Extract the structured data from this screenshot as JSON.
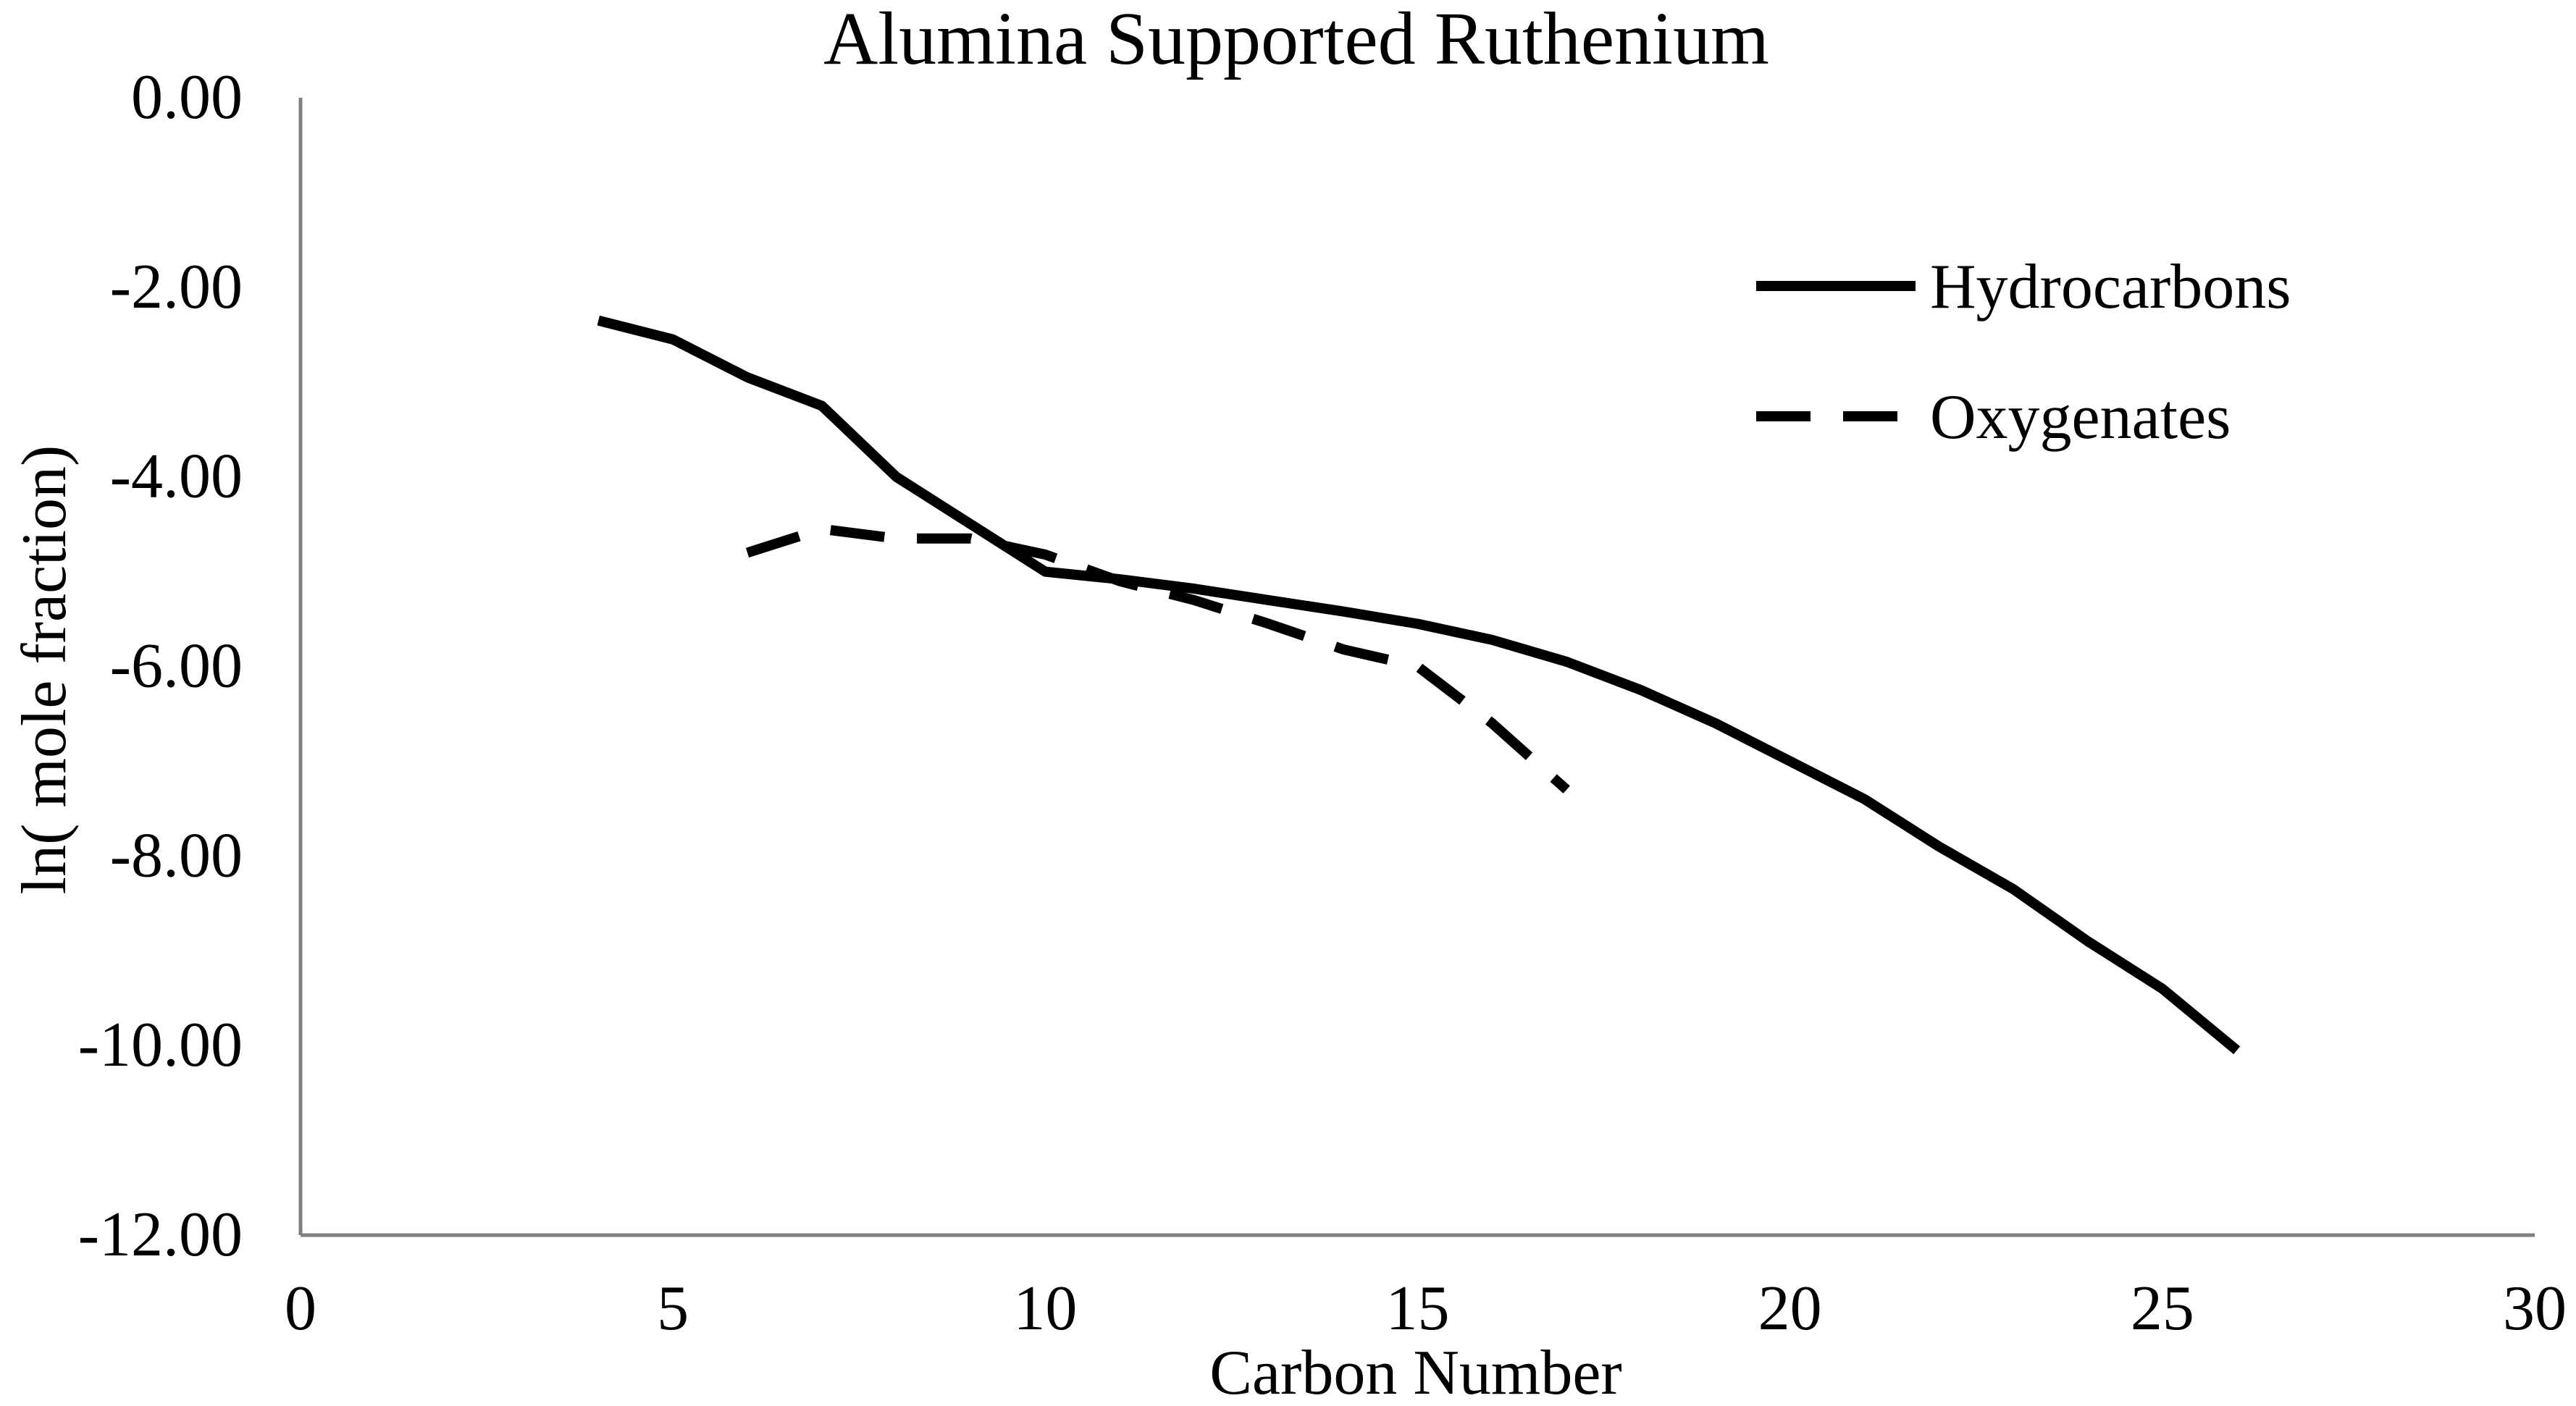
{
  "chart_data": {
    "type": "line",
    "title": "Alumina Supported Ruthenium",
    "xlabel": "Carbon Number",
    "ylabel": "ln( mole fraction)",
    "xlim": [
      0,
      30
    ],
    "ylim": [
      -12,
      0
    ],
    "x_ticks": [
      "0",
      "5",
      "10",
      "15",
      "20",
      "25",
      "30"
    ],
    "y_ticks": [
      "0.00",
      "-2.00",
      "-4.00",
      "-6.00",
      "-8.00",
      "-10.00",
      "-12.00"
    ],
    "grid": false,
    "legend_position": "top-right",
    "series": [
      {
        "name": "Hydrocarbons",
        "style": "solid",
        "color": "#000000",
        "x": [
          4,
          5,
          6,
          7,
          8,
          9,
          10,
          11,
          12,
          13,
          14,
          15,
          16,
          17,
          18,
          19,
          20,
          21,
          22,
          23,
          24,
          25,
          26
        ],
        "y": [
          -2.35,
          -2.55,
          -2.95,
          -3.25,
          -4.0,
          -4.5,
          -5.0,
          -5.08,
          -5.18,
          -5.3,
          -5.42,
          -5.55,
          -5.72,
          -5.95,
          -6.25,
          -6.6,
          -7.0,
          -7.4,
          -7.9,
          -8.35,
          -8.9,
          -9.4,
          -10.05
        ]
      },
      {
        "name": "Oxygenates",
        "style": "dashed",
        "color": "#000000",
        "x": [
          6,
          7,
          8,
          9,
          10,
          11,
          12,
          13,
          14,
          15,
          16,
          17
        ],
        "y": [
          -4.8,
          -4.55,
          -4.65,
          -4.65,
          -4.82,
          -5.1,
          -5.3,
          -5.55,
          -5.82,
          -6.0,
          -6.6,
          -7.3
        ]
      }
    ]
  }
}
